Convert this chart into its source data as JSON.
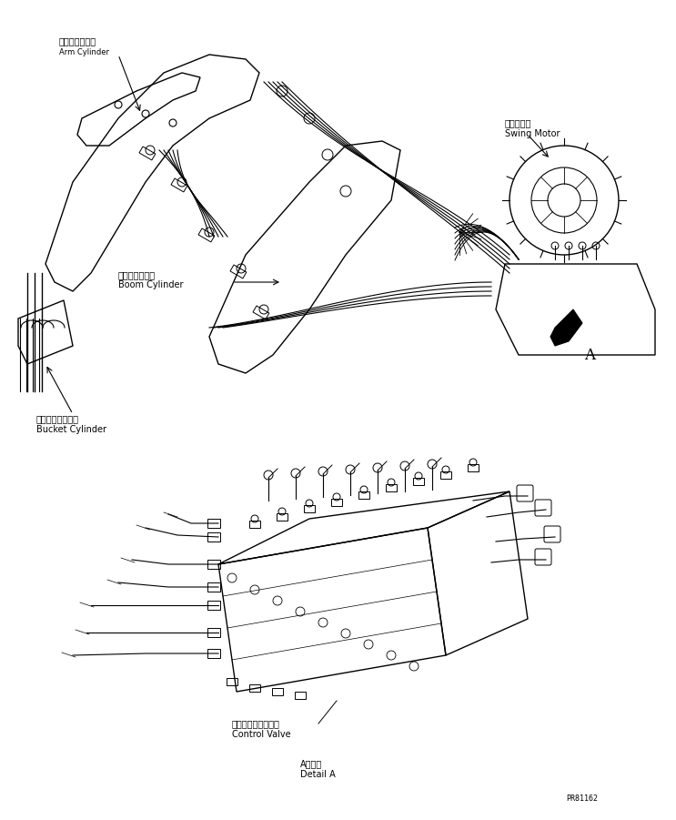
{
  "bg_color": "#ffffff",
  "fig_width": 7.43,
  "fig_height": 9.01,
  "dpi": 100,
  "labels": {
    "arm_cylinder_jp": "アームシリンダ",
    "arm_cylinder_en": "Arm Cylinder",
    "boom_cylinder_jp": "ブームシリンダ",
    "boom_cylinder_en": "Boom Cylinder",
    "bucket_cylinder_jp": "バケットシリンダ",
    "bucket_cylinder_en": "Bucket Cylinder",
    "swing_motor_jp": "旋回モータ",
    "swing_motor_en": "Swing Motor",
    "control_valve_jp": "コントロールバルブ",
    "control_valve_en": "Control Valve",
    "detail_a_jp": "A　詳細",
    "detail_a_en": "Detail A",
    "label_a": "A",
    "part_number": "PR81162"
  },
  "text_color": "#000000",
  "line_color": "#000000",
  "font_size_label": 7,
  "font_size_small": 6,
  "font_size_number": 7
}
